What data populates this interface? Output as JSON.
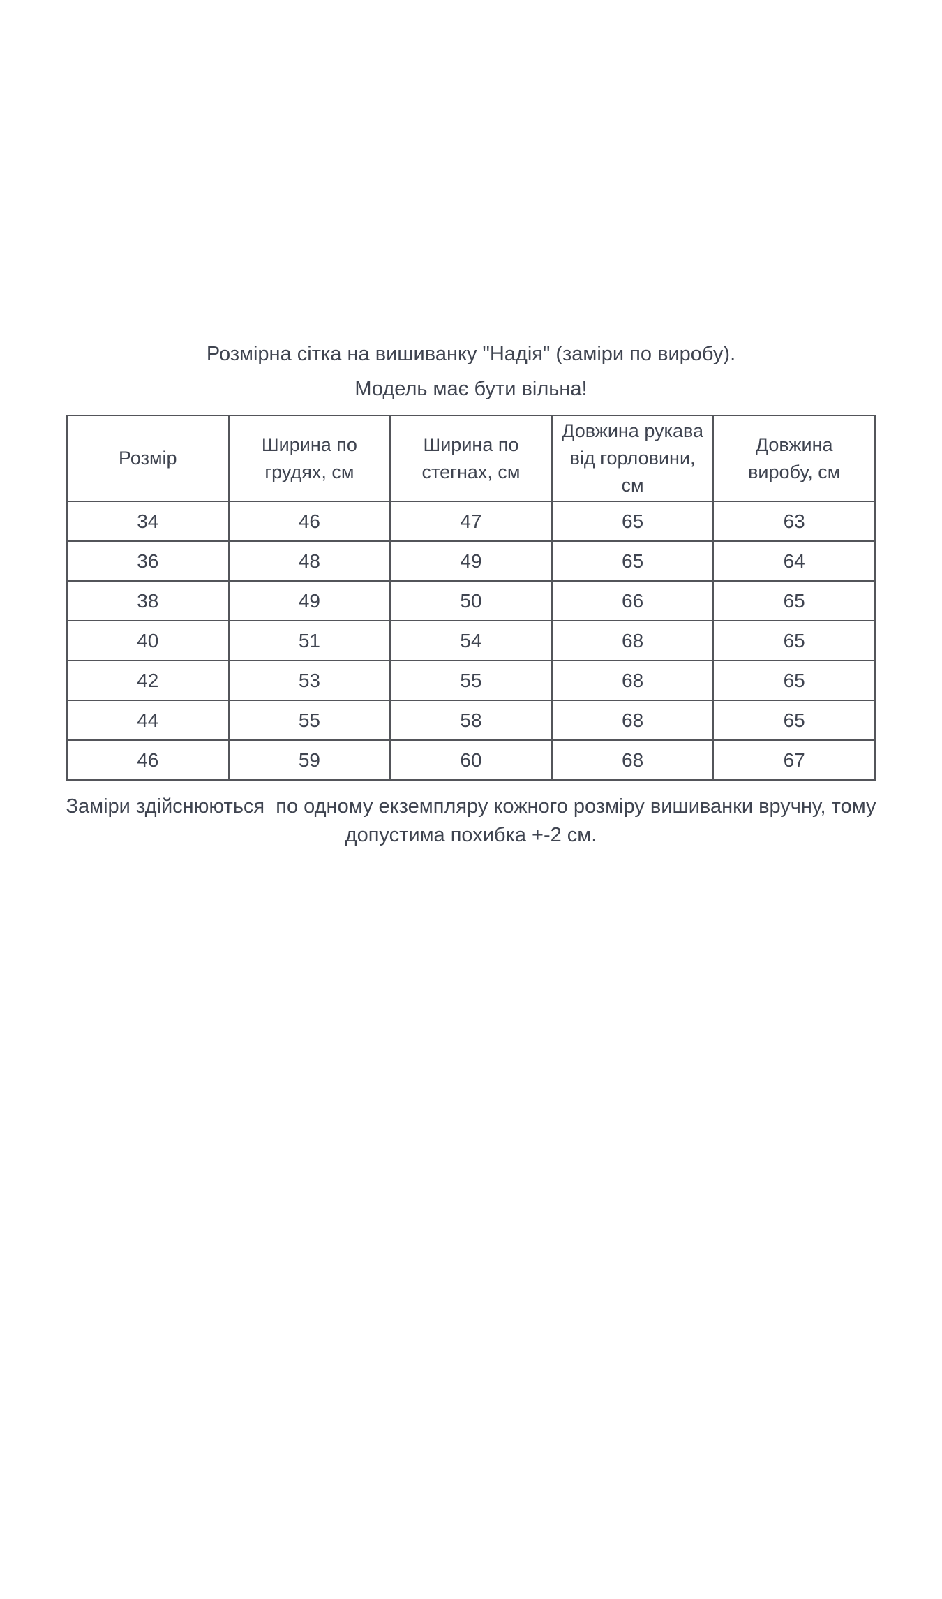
{
  "document": {
    "title": "Розмірна сітка на вишиванку \"Надія\" (заміри по виробу).",
    "subtitle": "Модель має бути вільна!",
    "footer_note": "Заміри здійснюються  по одному екземпляру кожного розміру вишиванки вручну, тому\nдопустима похибка +-2 см."
  },
  "table": {
    "headers": [
      "Розмір",
      "Ширина по\nгрудях, см",
      "Ширина по\nстегнах, см",
      "Довжина рукава\nвід горловини,\nсм",
      "Довжина\nвиробу, см"
    ],
    "rows": [
      [
        "34",
        "46",
        "47",
        "65",
        "63"
      ],
      [
        "36",
        "48",
        "49",
        "65",
        "64"
      ],
      [
        "38",
        "49",
        "50",
        "66",
        "65"
      ],
      [
        "40",
        "51",
        "54",
        "68",
        "65"
      ],
      [
        "42",
        "53",
        "55",
        "68",
        "65"
      ],
      [
        "44",
        "55",
        "58",
        "68",
        "65"
      ],
      [
        "46",
        "59",
        "60",
        "68",
        "67"
      ]
    ]
  },
  "colors": {
    "text": "#3f4450",
    "border": "#53555a",
    "background": "#ffffff"
  }
}
